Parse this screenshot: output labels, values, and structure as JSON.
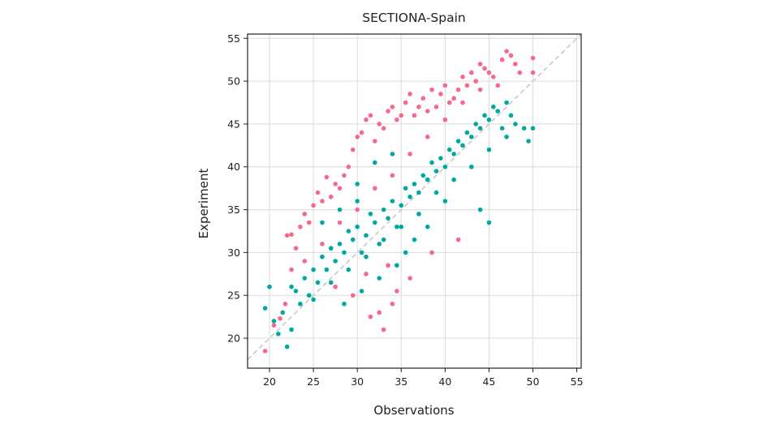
{
  "chart_data": {
    "type": "scatter",
    "title": "SECTIONA-Spain",
    "xlabel": "Observations",
    "ylabel": "Experiment",
    "xlim": [
      17.5,
      55.5
    ],
    "ylim": [
      16.5,
      55.5
    ],
    "xticks": [
      20,
      25,
      30,
      35,
      40,
      45,
      50,
      55
    ],
    "yticks": [
      20,
      25,
      30,
      35,
      40,
      45,
      50,
      55
    ],
    "grid": true,
    "reference_line": {
      "style": "dashed",
      "color": "#c8c8c8",
      "from": [
        17.5,
        17.5
      ],
      "to": [
        55.5,
        55.5
      ]
    },
    "series": [
      {
        "color": "#f7688a",
        "points": [
          [
            19.5,
            18.5
          ],
          [
            20.5,
            21.5
          ],
          [
            21.2,
            22.3
          ],
          [
            21.8,
            24.0
          ],
          [
            22.0,
            32.0
          ],
          [
            22.5,
            32.1
          ],
          [
            23.0,
            30.5
          ],
          [
            23.5,
            33.0
          ],
          [
            24.0,
            34.5
          ],
          [
            24.5,
            33.5
          ],
          [
            25.0,
            35.5
          ],
          [
            25.5,
            37.0
          ],
          [
            26.0,
            36.0
          ],
          [
            26.5,
            38.8
          ],
          [
            27.0,
            36.5
          ],
          [
            27.5,
            38.0
          ],
          [
            28.0,
            37.5
          ],
          [
            28.5,
            39.0
          ],
          [
            29.0,
            40.0
          ],
          [
            29.5,
            42.0
          ],
          [
            30.0,
            43.5
          ],
          [
            30.5,
            44.0
          ],
          [
            31.0,
            45.5
          ],
          [
            31.5,
            46.0
          ],
          [
            32.0,
            43.0
          ],
          [
            32.5,
            45.0
          ],
          [
            33.0,
            44.5
          ],
          [
            33.5,
            46.5
          ],
          [
            34.0,
            47.0
          ],
          [
            34.5,
            45.5
          ],
          [
            35.0,
            46.0
          ],
          [
            35.5,
            47.5
          ],
          [
            36.0,
            48.5
          ],
          [
            36.5,
            46.0
          ],
          [
            37.0,
            47.0
          ],
          [
            37.5,
            48.0
          ],
          [
            38.0,
            46.5
          ],
          [
            38.5,
            49.0
          ],
          [
            39.0,
            47.0
          ],
          [
            39.5,
            48.5
          ],
          [
            40.0,
            49.5
          ],
          [
            40.5,
            47.5
          ],
          [
            41.0,
            48.0
          ],
          [
            41.5,
            49.0
          ],
          [
            42.0,
            50.5
          ],
          [
            42.5,
            49.5
          ],
          [
            43.0,
            51.0
          ],
          [
            43.5,
            50.0
          ],
          [
            44.0,
            52.0
          ],
          [
            44.5,
            51.5
          ],
          [
            45.0,
            51.0
          ],
          [
            45.5,
            50.5
          ],
          [
            46.0,
            49.5
          ],
          [
            46.5,
            52.5
          ],
          [
            47.0,
            53.5
          ],
          [
            47.5,
            53.0
          ],
          [
            48.0,
            52.0
          ],
          [
            48.5,
            51.0
          ],
          [
            50.0,
            52.7
          ],
          [
            50.0,
            51.0
          ],
          [
            22.5,
            28.0
          ],
          [
            24.0,
            29.0
          ],
          [
            26.0,
            31.0
          ],
          [
            28.0,
            33.5
          ],
          [
            30.0,
            35.0
          ],
          [
            32.0,
            37.5
          ],
          [
            34.0,
            39.0
          ],
          [
            36.0,
            41.5
          ],
          [
            38.0,
            43.5
          ],
          [
            40.0,
            45.5
          ],
          [
            42.0,
            47.5
          ],
          [
            44.0,
            49.0
          ],
          [
            27.5,
            26.0
          ],
          [
            29.5,
            25.0
          ],
          [
            31.0,
            27.5
          ],
          [
            33.5,
            28.5
          ],
          [
            34.5,
            25.5
          ],
          [
            36.0,
            27.0
          ],
          [
            38.5,
            30.0
          ],
          [
            31.5,
            22.5
          ],
          [
            33.0,
            21.0
          ],
          [
            32.5,
            23.0
          ],
          [
            34.0,
            24.0
          ],
          [
            41.5,
            31.5
          ]
        ]
      },
      {
        "color": "#00a99d",
        "points": [
          [
            19.5,
            23.5
          ],
          [
            20.0,
            26.0
          ],
          [
            20.5,
            22.0
          ],
          [
            21.0,
            20.5
          ],
          [
            21.5,
            23.0
          ],
          [
            22.0,
            19.0
          ],
          [
            22.5,
            21.0
          ],
          [
            23.0,
            25.5
          ],
          [
            23.5,
            24.0
          ],
          [
            24.0,
            27.0
          ],
          [
            24.5,
            25.0
          ],
          [
            25.0,
            28.0
          ],
          [
            25.5,
            26.5
          ],
          [
            26.0,
            29.5
          ],
          [
            26.5,
            28.0
          ],
          [
            27.0,
            30.5
          ],
          [
            27.5,
            29.0
          ],
          [
            28.0,
            31.0
          ],
          [
            28.5,
            30.0
          ],
          [
            29.0,
            32.5
          ],
          [
            29.5,
            31.5
          ],
          [
            30.0,
            33.0
          ],
          [
            30.5,
            30.0
          ],
          [
            31.0,
            32.0
          ],
          [
            31.5,
            34.5
          ],
          [
            32.0,
            33.5
          ],
          [
            32.5,
            31.0
          ],
          [
            33.0,
            35.0
          ],
          [
            33.5,
            34.0
          ],
          [
            34.0,
            36.0
          ],
          [
            34.5,
            33.0
          ],
          [
            35.0,
            35.5
          ],
          [
            35.5,
            37.5
          ],
          [
            36.0,
            36.5
          ],
          [
            36.5,
            38.0
          ],
          [
            37.0,
            37.0
          ],
          [
            37.5,
            39.0
          ],
          [
            38.0,
            38.5
          ],
          [
            38.5,
            40.5
          ],
          [
            39.0,
            39.5
          ],
          [
            39.5,
            41.0
          ],
          [
            40.0,
            40.0
          ],
          [
            40.5,
            42.0
          ],
          [
            41.0,
            41.5
          ],
          [
            41.5,
            43.0
          ],
          [
            42.0,
            42.5
          ],
          [
            42.5,
            44.0
          ],
          [
            43.0,
            43.5
          ],
          [
            43.5,
            45.0
          ],
          [
            44.0,
            44.5
          ],
          [
            44.5,
            46.0
          ],
          [
            45.0,
            45.5
          ],
          [
            45.5,
            47.0
          ],
          [
            46.0,
            46.5
          ],
          [
            46.5,
            44.5
          ],
          [
            47.0,
            47.5
          ],
          [
            47.5,
            46.0
          ],
          [
            48.0,
            45.0
          ],
          [
            49.0,
            44.5
          ],
          [
            50.0,
            44.5
          ],
          [
            49.5,
            43.0
          ],
          [
            45.0,
            33.5
          ],
          [
            44.0,
            35.0
          ],
          [
            38.0,
            33.0
          ],
          [
            36.5,
            31.5
          ],
          [
            40.0,
            36.0
          ],
          [
            22.5,
            26.0
          ],
          [
            25.0,
            24.5
          ],
          [
            27.0,
            26.5
          ],
          [
            29.0,
            28.0
          ],
          [
            31.0,
            29.5
          ],
          [
            33.0,
            31.5
          ],
          [
            35.0,
            33.0
          ],
          [
            37.0,
            34.5
          ],
          [
            39.0,
            37.0
          ],
          [
            41.0,
            38.5
          ],
          [
            43.0,
            40.0
          ],
          [
            45.0,
            42.0
          ],
          [
            47.0,
            43.5
          ],
          [
            30.0,
            38.0
          ],
          [
            32.0,
            40.5
          ],
          [
            34.0,
            41.5
          ],
          [
            28.5,
            24.0
          ],
          [
            30.5,
            25.5
          ],
          [
            32.5,
            27.0
          ],
          [
            34.5,
            28.5
          ],
          [
            26.0,
            33.5
          ],
          [
            28.0,
            35.0
          ],
          [
            30.0,
            36.0
          ],
          [
            35.5,
            30.0
          ]
        ]
      }
    ]
  }
}
